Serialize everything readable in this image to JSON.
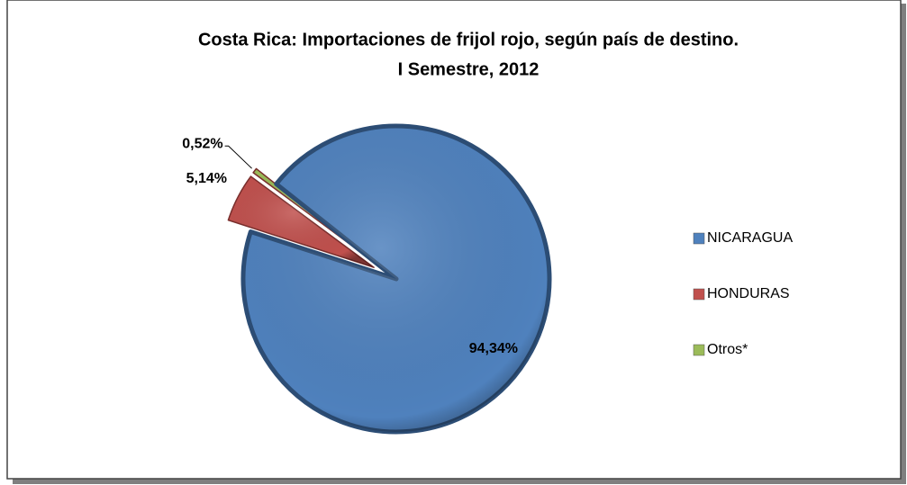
{
  "chart_data": {
    "type": "pie",
    "title": "Costa Rica: Importaciones de frijol rojo, según país de destino.",
    "subtitle": "I Semestre, 2012",
    "categories": [
      "NICARAGUA",
      "HONDURAS",
      "Otros*"
    ],
    "values": [
      94.34,
      5.14,
      0.52
    ],
    "value_labels": [
      "94,34%",
      "5,14%",
      "0,52%"
    ],
    "colors": [
      "#4f81bd",
      "#c0504d",
      "#9bbb59"
    ],
    "legend": "right"
  }
}
